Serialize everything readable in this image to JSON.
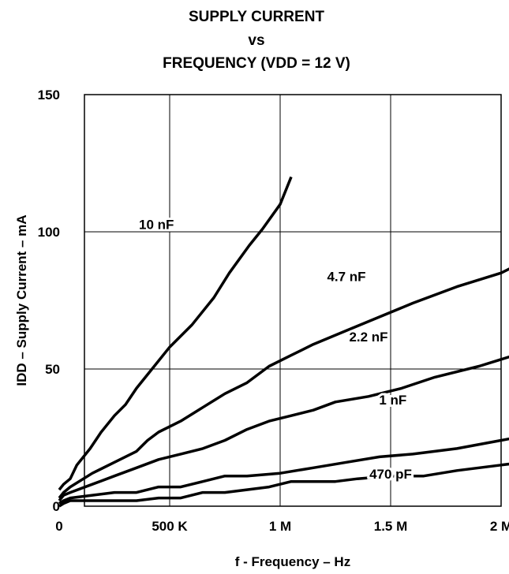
{
  "chart_data": {
    "type": "line",
    "title_lines": [
      "SUPPLY CURRENT",
      "vs",
      "FREQUENCY (VDD = 12 V)"
    ],
    "xlabel": "f - Frequency – Hz",
    "ylabel": "IDD – Supply Current – mA",
    "xlim": [
      0,
      2000000
    ],
    "ylim": [
      0,
      150
    ],
    "grid": true,
    "x_ticks": [
      {
        "value": 0,
        "label": "0"
      },
      {
        "value": 500000,
        "label": "500 K"
      },
      {
        "value": 1000000,
        "label": "1 M"
      },
      {
        "value": 1500000,
        "label": "1.5 M"
      },
      {
        "value": 2000000,
        "label": "2 M"
      }
    ],
    "y_ticks": [
      {
        "value": 0,
        "label": "0"
      },
      {
        "value": 50,
        "label": "50"
      },
      {
        "value": 100,
        "label": "100"
      },
      {
        "value": 150,
        "label": "150"
      }
    ],
    "series": [
      {
        "name": "10 nF",
        "label_at": [
          440000,
          101
        ],
        "points": [
          [
            0,
            6
          ],
          [
            20000,
            8
          ],
          [
            50000,
            10
          ],
          [
            80000,
            15
          ],
          [
            140000,
            21
          ],
          [
            190000,
            27
          ],
          [
            250000,
            33
          ],
          [
            300000,
            37
          ],
          [
            350000,
            43
          ],
          [
            400000,
            48
          ],
          [
            500000,
            58
          ],
          [
            600000,
            66
          ],
          [
            700000,
            76
          ],
          [
            770000,
            85
          ],
          [
            860000,
            95
          ],
          [
            920000,
            101
          ],
          [
            1000000,
            110
          ],
          [
            1050000,
            120
          ]
        ]
      },
      {
        "name": "4.7 nF",
        "label_at": [
          1300000,
          82
        ],
        "points": [
          [
            0,
            3
          ],
          [
            20000,
            5
          ],
          [
            50000,
            7
          ],
          [
            150000,
            12
          ],
          [
            250000,
            16
          ],
          [
            350000,
            20
          ],
          [
            400000,
            24
          ],
          [
            450000,
            27
          ],
          [
            550000,
            31
          ],
          [
            650000,
            36
          ],
          [
            750000,
            41
          ],
          [
            850000,
            45
          ],
          [
            950000,
            51
          ],
          [
            1050000,
            55
          ],
          [
            1150000,
            59
          ],
          [
            1300000,
            64
          ],
          [
            1450000,
            69
          ],
          [
            1600000,
            74
          ],
          [
            1800000,
            80
          ],
          [
            2000000,
            85
          ],
          [
            2150000,
            91
          ],
          [
            2400000,
            100
          ]
        ]
      },
      {
        "name": "2.2 nF",
        "label_at": [
          1400000,
          60
        ],
        "points": [
          [
            0,
            2
          ],
          [
            20000,
            4
          ],
          [
            50000,
            5
          ],
          [
            150000,
            8
          ],
          [
            250000,
            11
          ],
          [
            350000,
            14
          ],
          [
            450000,
            17
          ],
          [
            550000,
            19
          ],
          [
            650000,
            21
          ],
          [
            750000,
            24
          ],
          [
            850000,
            28
          ],
          [
            950000,
            31
          ],
          [
            1050000,
            33
          ],
          [
            1150000,
            35
          ],
          [
            1250000,
            38
          ],
          [
            1400000,
            40
          ],
          [
            1550000,
            43
          ],
          [
            1700000,
            47
          ],
          [
            1900000,
            51
          ],
          [
            2100000,
            56
          ],
          [
            2250000,
            59
          ],
          [
            2400000,
            64
          ]
        ]
      },
      {
        "name": "1 nF",
        "label_at": [
          1510000,
          37
        ],
        "points": [
          [
            0,
            1
          ],
          [
            20000,
            2
          ],
          [
            50000,
            3
          ],
          [
            150000,
            4
          ],
          [
            250000,
            5
          ],
          [
            350000,
            5
          ],
          [
            450000,
            7
          ],
          [
            550000,
            7
          ],
          [
            650000,
            9
          ],
          [
            750000,
            11
          ],
          [
            850000,
            11
          ],
          [
            1000000,
            12
          ],
          [
            1150000,
            14
          ],
          [
            1300000,
            16
          ],
          [
            1450000,
            18
          ],
          [
            1600000,
            19
          ],
          [
            1800000,
            21
          ],
          [
            2000000,
            24
          ],
          [
            2200000,
            27
          ],
          [
            2400000,
            30
          ]
        ]
      },
      {
        "name": "470 pF",
        "label_at": [
          1500000,
          10
        ],
        "points": [
          [
            0,
            0
          ],
          [
            20000,
            1
          ],
          [
            50000,
            2
          ],
          [
            150000,
            2
          ],
          [
            250000,
            2
          ],
          [
            350000,
            2
          ],
          [
            450000,
            3
          ],
          [
            550000,
            3
          ],
          [
            650000,
            5
          ],
          [
            750000,
            5
          ],
          [
            850000,
            6
          ],
          [
            950000,
            7
          ],
          [
            1050000,
            9
          ],
          [
            1150000,
            9
          ],
          [
            1250000,
            9
          ],
          [
            1350000,
            10
          ],
          [
            1500000,
            11
          ],
          [
            1650000,
            11
          ],
          [
            1800000,
            13
          ],
          [
            2000000,
            15
          ],
          [
            2200000,
            17
          ],
          [
            2400000,
            18
          ]
        ]
      }
    ]
  }
}
